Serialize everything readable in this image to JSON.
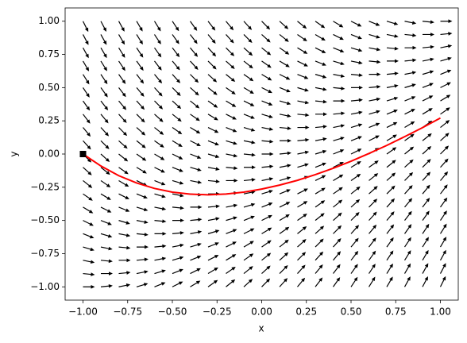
{
  "chart_data": {
    "type": "quiver",
    "xlabel": "x",
    "ylabel": "y",
    "xlim": [
      -1.1,
      1.1
    ],
    "ylim": [
      -1.1,
      1.1
    ],
    "xticks": [
      {
        "value": -1,
        "label": "−1.00"
      },
      {
        "value": -0.75,
        "label": "−0.75"
      },
      {
        "value": -0.5,
        "label": "−0.50"
      },
      {
        "value": -0.25,
        "label": "−0.25"
      },
      {
        "value": 0,
        "label": "0.00"
      },
      {
        "value": 0.25,
        "label": "0.25"
      },
      {
        "value": 0.5,
        "label": "0.50"
      },
      {
        "value": 0.75,
        "label": "0.75"
      },
      {
        "value": 1,
        "label": "1.00"
      }
    ],
    "yticks": [
      {
        "value": -1,
        "label": "−1.00"
      },
      {
        "value": -0.75,
        "label": "−0.75"
      },
      {
        "value": -0.5,
        "label": "−0.50"
      },
      {
        "value": -0.25,
        "label": "−0.25"
      },
      {
        "value": 0,
        "label": "0.00"
      },
      {
        "value": 0.25,
        "label": "0.25"
      },
      {
        "value": 0.5,
        "label": "0.50"
      },
      {
        "value": 0.75,
        "label": "0.75"
      },
      {
        "value": 1,
        "label": "1.00"
      }
    ],
    "arrow_color": "#000000",
    "grid_x": [
      -1,
      -0.9,
      -0.8,
      -0.7,
      -0.6,
      -0.5,
      -0.4,
      -0.3,
      -0.2,
      -0.1,
      0,
      0.1,
      0.2,
      0.3,
      0.4,
      0.5,
      0.6,
      0.7,
      0.8,
      0.9,
      1
    ],
    "grid_y": [
      -1,
      -0.9,
      -0.8,
      -0.7,
      -0.6,
      -0.5,
      -0.4,
      -0.3,
      -0.2,
      -0.1,
      0,
      0.1,
      0.2,
      0.3,
      0.4,
      0.5,
      0.6,
      0.7,
      0.8,
      0.9,
      1
    ],
    "slopes": [
      [
        0,
        0.1,
        0.2,
        0.3,
        0.4,
        0.5,
        0.6,
        0.7,
        0.8,
        0.9,
        1,
        1.1,
        1.2,
        1.3,
        1.4,
        1.5,
        1.6,
        1.7,
        1.8,
        1.9,
        2
      ],
      [
        -0.1,
        0,
        0.1,
        0.2,
        0.3,
        0.4,
        0.5,
        0.6,
        0.7,
        0.8,
        0.9,
        1,
        1.1,
        1.2,
        1.3,
        1.4,
        1.5,
        1.6,
        1.7,
        1.8,
        1.9
      ],
      [
        -0.2,
        -0.1,
        0,
        0.1,
        0.2,
        0.3,
        0.4,
        0.5,
        0.6,
        0.7,
        0.8,
        0.9,
        1,
        1.1,
        1.2,
        1.3,
        1.4,
        1.5,
        1.6,
        1.7,
        1.8
      ],
      [
        -0.3,
        -0.2,
        -0.1,
        0,
        0.1,
        0.2,
        0.3,
        0.4,
        0.5,
        0.6,
        0.7,
        0.8,
        0.9,
        1,
        1.1,
        1.2,
        1.3,
        1.4,
        1.5,
        1.6,
        1.7
      ],
      [
        -0.4,
        -0.3,
        -0.2,
        -0.1,
        0,
        0.1,
        0.2,
        0.3,
        0.4,
        0.5,
        0.6,
        0.7,
        0.8,
        0.9,
        1,
        1.1,
        1.2,
        1.3,
        1.4,
        1.5,
        1.6
      ],
      [
        -0.5,
        -0.4,
        -0.3,
        -0.2,
        -0.1,
        0,
        0.1,
        0.2,
        0.3,
        0.4,
        0.5,
        0.6,
        0.7,
        0.8,
        0.9,
        1,
        1.1,
        1.2,
        1.3,
        1.4,
        1.5
      ],
      [
        -0.6,
        -0.5,
        -0.4,
        -0.3,
        -0.2,
        -0.1,
        0,
        0.1,
        0.2,
        0.3,
        0.4,
        0.5,
        0.6,
        0.7,
        0.8,
        0.9,
        1,
        1.1,
        1.2,
        1.3,
        1.4
      ],
      [
        -0.7,
        -0.6,
        -0.5,
        -0.4,
        -0.3,
        -0.2,
        -0.1,
        0,
        0.1,
        0.2,
        0.3,
        0.4,
        0.5,
        0.6,
        0.7,
        0.8,
        0.9,
        1,
        1.1,
        1.2,
        1.3
      ],
      [
        -0.8,
        -0.7,
        -0.6,
        -0.5,
        -0.4,
        -0.3,
        -0.2,
        -0.1,
        0,
        0.1,
        0.2,
        0.3,
        0.4,
        0.5,
        0.6,
        0.7,
        0.8,
        0.9,
        1,
        1.1,
        1.2
      ],
      [
        -0.9,
        -0.8,
        -0.7,
        -0.6,
        -0.5,
        -0.4,
        -0.3,
        -0.2,
        -0.1,
        0,
        0.1,
        0.2,
        0.3,
        0.4,
        0.5,
        0.6,
        0.7,
        0.8,
        0.9,
        1,
        1.1
      ],
      [
        -1,
        -0.9,
        -0.8,
        -0.7,
        -0.6,
        -0.5,
        -0.4,
        -0.3,
        -0.2,
        -0.1,
        0,
        0.1,
        0.2,
        0.3,
        0.4,
        0.5,
        0.6,
        0.7,
        0.8,
        0.9,
        1
      ],
      [
        -1.1,
        -1,
        -0.9,
        -0.8,
        -0.7,
        -0.6,
        -0.5,
        -0.4,
        -0.3,
        -0.2,
        -0.1,
        0,
        0.1,
        0.2,
        0.3,
        0.4,
        0.5,
        0.6,
        0.7,
        0.8,
        0.9
      ],
      [
        -1.2,
        -1.1,
        -1,
        -0.9,
        -0.8,
        -0.7,
        -0.6,
        -0.5,
        -0.4,
        -0.3,
        -0.2,
        -0.1,
        0,
        0.1,
        0.2,
        0.3,
        0.4,
        0.5,
        0.6,
        0.7,
        0.8
      ],
      [
        -1.3,
        -1.2,
        -1.1,
        -1,
        -0.9,
        -0.8,
        -0.7,
        -0.6,
        -0.5,
        -0.4,
        -0.3,
        -0.2,
        -0.1,
        0,
        0.1,
        0.2,
        0.3,
        0.4,
        0.5,
        0.6,
        0.7
      ],
      [
        -1.4,
        -1.3,
        -1.2,
        -1.1,
        -1,
        -0.9,
        -0.8,
        -0.7,
        -0.6,
        -0.5,
        -0.4,
        -0.3,
        -0.2,
        -0.1,
        0,
        0.1,
        0.2,
        0.3,
        0.4,
        0.5,
        0.6
      ],
      [
        -1.5,
        -1.4,
        -1.3,
        -1.2,
        -1.1,
        -1,
        -0.9,
        -0.8,
        -0.7,
        -0.6,
        -0.5,
        -0.4,
        -0.3,
        -0.2,
        -0.1,
        0,
        0.1,
        0.2,
        0.3,
        0.4,
        0.5
      ],
      [
        -1.6,
        -1.5,
        -1.4,
        -1.3,
        -1.2,
        -1.1,
        -1,
        -0.9,
        -0.8,
        -0.7,
        -0.6,
        -0.5,
        -0.4,
        -0.3,
        -0.2,
        -0.1,
        0,
        0.1,
        0.2,
        0.3,
        0.4
      ],
      [
        -1.7,
        -1.6,
        -1.5,
        -1.4,
        -1.3,
        -1.2,
        -1.1,
        -1,
        -0.9,
        -0.8,
        -0.7,
        -0.6,
        -0.5,
        -0.4,
        -0.3,
        -0.2,
        -0.1,
        0,
        0.1,
        0.2,
        0.3
      ],
      [
        -1.8,
        -1.7,
        -1.6,
        -1.5,
        -1.4,
        -1.3,
        -1.2,
        -1.1,
        -1,
        -0.9,
        -0.8,
        -0.7,
        -0.6,
        -0.5,
        -0.4,
        -0.3,
        -0.2,
        -0.1,
        0,
        0.1,
        0.2
      ],
      [
        -1.9,
        -1.8,
        -1.7,
        -1.6,
        -1.5,
        -1.4,
        -1.3,
        -1.2,
        -1.1,
        -1,
        -0.9,
        -0.8,
        -0.7,
        -0.6,
        -0.5,
        -0.4,
        -0.3,
        -0.2,
        -0.1,
        0,
        0.1
      ],
      [
        -2,
        -1.9,
        -1.8,
        -1.7,
        -1.6,
        -1.5,
        -1.4,
        -1.3,
        -1.2,
        -1.1,
        -1,
        -0.9,
        -0.8,
        -0.7,
        -0.6,
        -0.5,
        -0.4,
        -0.3,
        -0.2,
        -0.1,
        0
      ]
    ],
    "curve": {
      "color": "#ff0000",
      "x": [
        -1,
        -0.9,
        -0.8,
        -0.7,
        -0.6,
        -0.5,
        -0.4,
        -0.3,
        -0.2,
        -0.1,
        0,
        0.1,
        0.2,
        0.3,
        0.4,
        0.5,
        0.6,
        0.7,
        0.8,
        0.9,
        1
      ],
      "y": [
        0,
        -0.09,
        -0.163,
        -0.218,
        -0.259,
        -0.287,
        -0.302,
        -0.307,
        -0.301,
        -0.287,
        -0.264,
        -0.234,
        -0.198,
        -0.155,
        -0.107,
        -0.054,
        0.004,
        0.065,
        0.131,
        0.199,
        0.271
      ]
    },
    "start": {
      "x": -1,
      "y": 0,
      "color": "#000000"
    }
  }
}
